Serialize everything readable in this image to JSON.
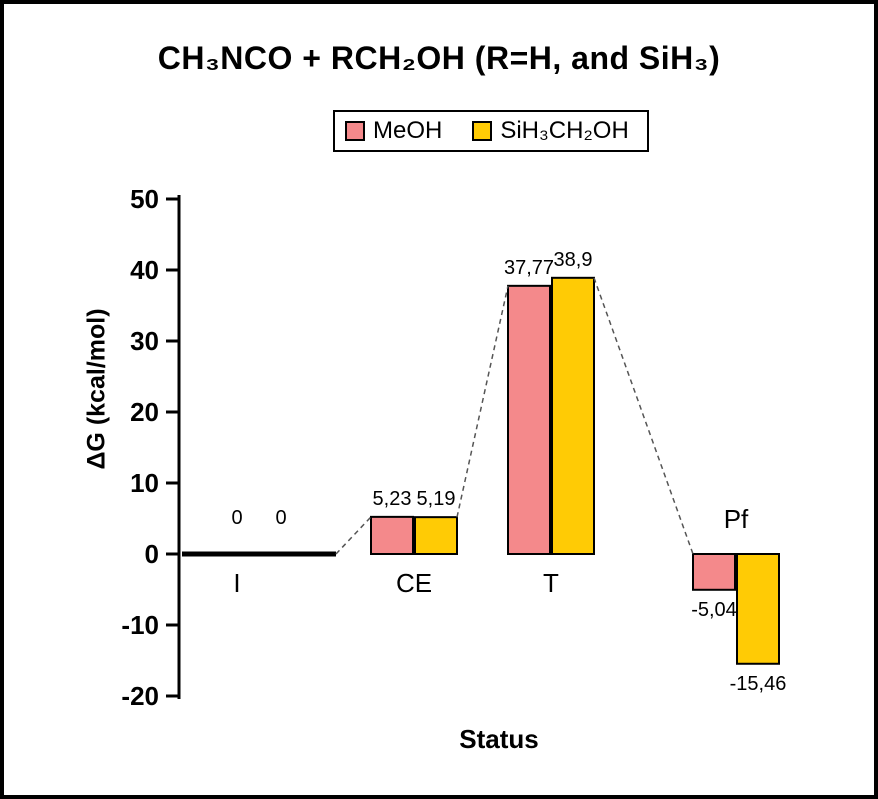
{
  "chart_data": {
    "type": "bar",
    "title": "CH₃NCO + RCH₂OH (R=H, and SiH₃)",
    "xlabel": "Status",
    "ylabel": "ΔG (kcal/mol)",
    "ylim": [
      -20,
      50
    ],
    "yticks": [
      50,
      40,
      30,
      20,
      10,
      0,
      -10,
      -20
    ],
    "categories": [
      "I",
      "CE",
      "T",
      "Pf"
    ],
    "series": [
      {
        "name": "MeOH",
        "color": "#F4898B",
        "values": [
          0,
          5.23,
          37.77,
          -5.04
        ],
        "value_labels": [
          "0",
          "5,23",
          "37,77",
          "-5,04"
        ]
      },
      {
        "name": "SiH₃CH₂OH",
        "color": "#FFCB05",
        "values": [
          0,
          5.19,
          38.9,
          -15.46
        ],
        "value_labels": [
          "0",
          "5,19",
          "38,9",
          "-15,46"
        ]
      }
    ],
    "baseline": {
      "category": "I",
      "value": 0
    },
    "legend_position": "top-center",
    "grid": false,
    "axis_color": "#000000",
    "connectors": [
      {
        "from": {
          "cat": "I",
          "edge": "baseline-end",
          "value": 0
        },
        "to": {
          "cat": "CE",
          "series": 0,
          "edge": "left",
          "value": 5.23
        }
      },
      {
        "from": {
          "cat": "CE",
          "series": 1,
          "edge": "right",
          "value": 5.19
        },
        "to": {
          "cat": "T",
          "series": 0,
          "edge": "left",
          "value": 37.77
        }
      },
      {
        "from": {
          "cat": "T",
          "series": 1,
          "edge": "right",
          "value": 38.9
        },
        "to": {
          "cat": "Pf",
          "series": 0,
          "edge": "left",
          "value": 0
        }
      }
    ]
  }
}
